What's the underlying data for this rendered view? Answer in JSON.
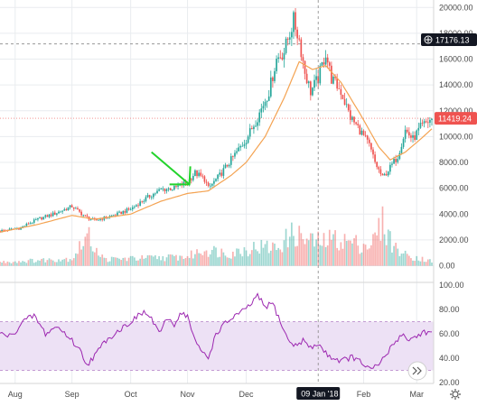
{
  "chart_data": {
    "type": "candlestick",
    "price_axis": {
      "ticks": [
        "20000.00",
        "18000.00",
        "16000.00",
        "14000.00",
        "12000.00",
        "10000.00",
        "8000.00",
        "6000.00",
        "4000.00",
        "2000.00",
        "0.00"
      ],
      "range": [
        -800,
        20300
      ]
    },
    "rsi_axis": {
      "ticks": [
        "100.00",
        "80.00",
        "60.00",
        "40.00",
        "20.00"
      ],
      "range": [
        20,
        100
      ],
      "band": [
        30,
        70
      ]
    },
    "time_axis": {
      "labels": [
        "Aug",
        "Sep",
        "Oct",
        "Nov",
        "Dec",
        "Feb",
        "Mar"
      ],
      "label_days": [
        8,
        38,
        69,
        99,
        130,
        192,
        220
      ]
    },
    "crosshair": {
      "price": 17176.13,
      "price_label": "17176.13",
      "time_label": "09 Jan '18",
      "day": 168
    },
    "last_price": {
      "value": 11419.24,
      "label": "11419.24"
    },
    "price_points": [
      [
        0,
        2700
      ],
      [
        10,
        2900
      ],
      [
        20,
        3600
      ],
      [
        30,
        4100
      ],
      [
        38,
        4600
      ],
      [
        45,
        3800
      ],
      [
        50,
        3500
      ],
      [
        55,
        3700
      ],
      [
        62,
        4000
      ],
      [
        69,
        4400
      ],
      [
        78,
        5300
      ],
      [
        85,
        5900
      ],
      [
        92,
        6000
      ],
      [
        99,
        6500
      ],
      [
        103,
        7200
      ],
      [
        108,
        6700
      ],
      [
        110,
        6000
      ],
      [
        116,
        7000
      ],
      [
        122,
        8200
      ],
      [
        130,
        9800
      ],
      [
        136,
        11500
      ],
      [
        142,
        13500
      ],
      [
        146,
        16000
      ],
      [
        150,
        16600
      ],
      [
        155,
        19000
      ],
      [
        158,
        17500
      ],
      [
        161,
        15000
      ],
      [
        164,
        13500
      ],
      [
        168,
        14500
      ],
      [
        172,
        16500
      ],
      [
        175,
        14500
      ],
      [
        180,
        13500
      ],
      [
        185,
        11500
      ],
      [
        190,
        10500
      ],
      [
        195,
        9300
      ],
      [
        198,
        8000
      ],
      [
        202,
        6800
      ],
      [
        206,
        7600
      ],
      [
        210,
        8500
      ],
      [
        214,
        10500
      ],
      [
        218,
        9800
      ],
      [
        222,
        10700
      ],
      [
        228,
        11400
      ]
    ],
    "ema_points": [
      [
        0,
        2600
      ],
      [
        20,
        3200
      ],
      [
        38,
        3900
      ],
      [
        50,
        3600
      ],
      [
        69,
        4000
      ],
      [
        85,
        5000
      ],
      [
        99,
        5600
      ],
      [
        110,
        5800
      ],
      [
        122,
        7000
      ],
      [
        130,
        8000
      ],
      [
        140,
        10000
      ],
      [
        150,
        13000
      ],
      [
        158,
        15800
      ],
      [
        165,
        15200
      ],
      [
        172,
        15500
      ],
      [
        180,
        14200
      ],
      [
        190,
        11800
      ],
      [
        200,
        9200
      ],
      [
        206,
        8200
      ],
      [
        214,
        8800
      ],
      [
        222,
        9800
      ],
      [
        228,
        10600
      ]
    ],
    "rsi_points": [
      [
        0,
        60
      ],
      [
        6,
        58
      ],
      [
        12,
        70
      ],
      [
        18,
        75
      ],
      [
        24,
        60
      ],
      [
        30,
        66
      ],
      [
        36,
        58
      ],
      [
        42,
        47
      ],
      [
        46,
        35
      ],
      [
        50,
        42
      ],
      [
        56,
        55
      ],
      [
        62,
        62
      ],
      [
        69,
        70
      ],
      [
        76,
        78
      ],
      [
        80,
        72
      ],
      [
        85,
        60
      ],
      [
        88,
        73
      ],
      [
        92,
        68
      ],
      [
        96,
        78
      ],
      [
        99,
        74
      ],
      [
        104,
        50
      ],
      [
        110,
        40
      ],
      [
        114,
        60
      ],
      [
        118,
        67
      ],
      [
        124,
        75
      ],
      [
        130,
        80
      ],
      [
        136,
        91
      ],
      [
        140,
        82
      ],
      [
        144,
        85
      ],
      [
        148,
        70
      ],
      [
        152,
        55
      ],
      [
        156,
        50
      ],
      [
        160,
        55
      ],
      [
        164,
        48
      ],
      [
        168,
        52
      ],
      [
        172,
        44
      ],
      [
        176,
        40
      ],
      [
        180,
        38
      ],
      [
        186,
        41
      ],
      [
        192,
        35
      ],
      [
        196,
        30
      ],
      [
        200,
        35
      ],
      [
        204,
        43
      ],
      [
        208,
        52
      ],
      [
        212,
        60
      ],
      [
        216,
        55
      ],
      [
        220,
        58
      ],
      [
        224,
        62
      ],
      [
        228,
        60
      ]
    ],
    "volume_points": [
      [
        0,
        400
      ],
      [
        20,
        600
      ],
      [
        38,
        800
      ],
      [
        46,
        3300
      ],
      [
        55,
        700
      ],
      [
        69,
        800
      ],
      [
        85,
        900
      ],
      [
        99,
        1000
      ],
      [
        108,
        1800
      ],
      [
        122,
        1400
      ],
      [
        136,
        2100
      ],
      [
        146,
        2000
      ],
      [
        155,
        3600
      ],
      [
        162,
        2800
      ],
      [
        170,
        2600
      ],
      [
        176,
        3000
      ],
      [
        190,
        2400
      ],
      [
        196,
        2300
      ],
      [
        202,
        4700
      ],
      [
        208,
        2100
      ],
      [
        214,
        1200
      ],
      [
        222,
        800
      ],
      [
        228,
        500
      ]
    ],
    "annotation": {
      "type": "arrow",
      "color": "#22d32b",
      "from": [
        80,
        8800
      ],
      "to": [
        100,
        6300
      ]
    },
    "colors": {
      "up": "#26a69a",
      "down": "#ef5350",
      "ema": "#f4a352",
      "rsi_line": "#9c27b0",
      "rsi_band": "#ede1f5",
      "grid": "#e9ecef",
      "crosshair": "#888888",
      "tag_dark": "#131722",
      "tag_red": "#ef5350"
    }
  }
}
